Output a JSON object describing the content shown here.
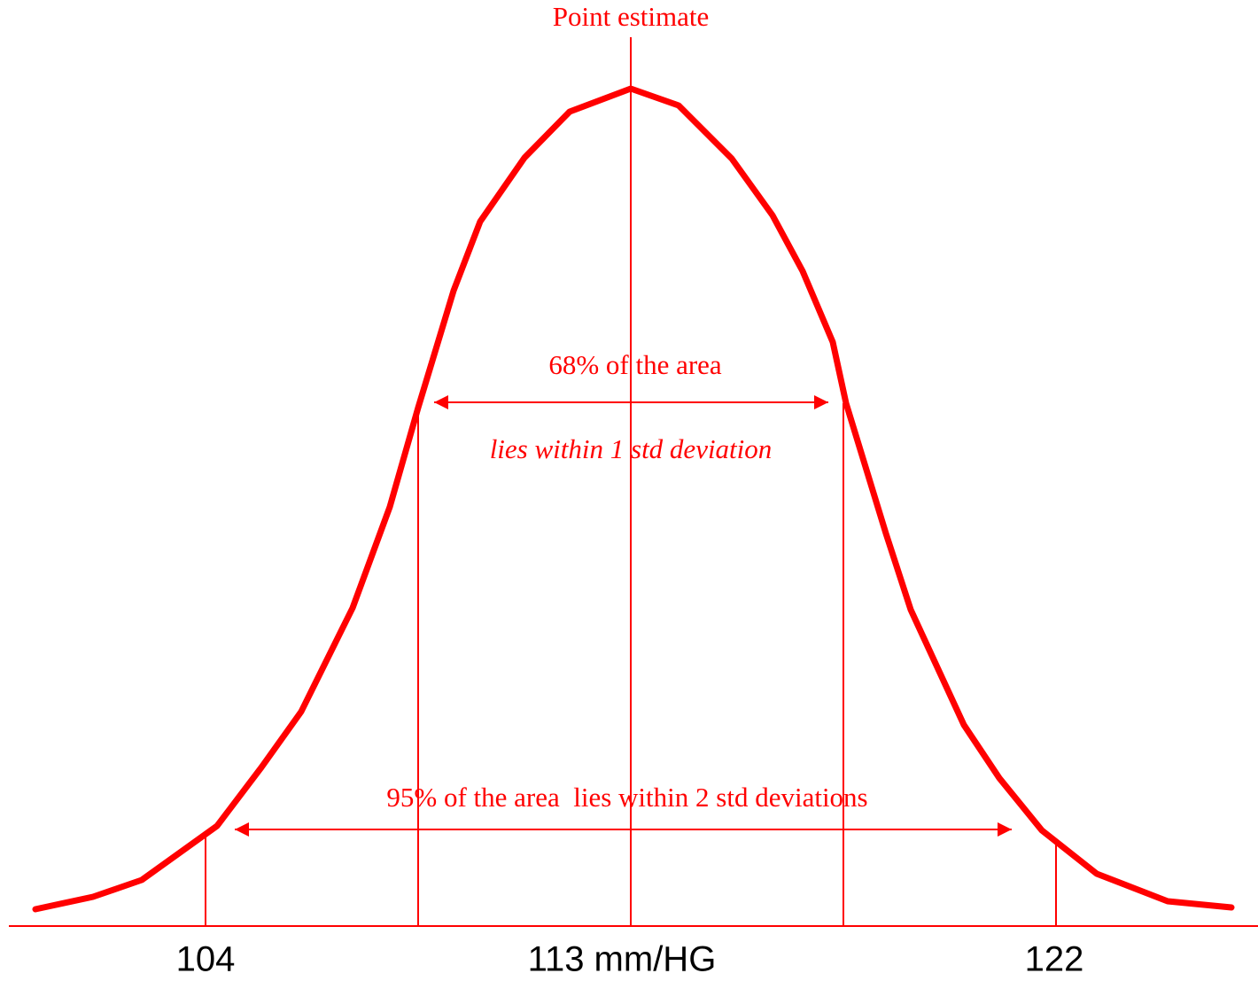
{
  "title": "Point estimate",
  "inner_range": {
    "label": "68% of the area",
    "caption": "lies within 1 std deviation"
  },
  "outer_range": {
    "label": "95% of the area  lies within 2 std deviations"
  },
  "axis_labels": {
    "left": "104",
    "center": "113 mm/HG",
    "right": "122"
  }
}
